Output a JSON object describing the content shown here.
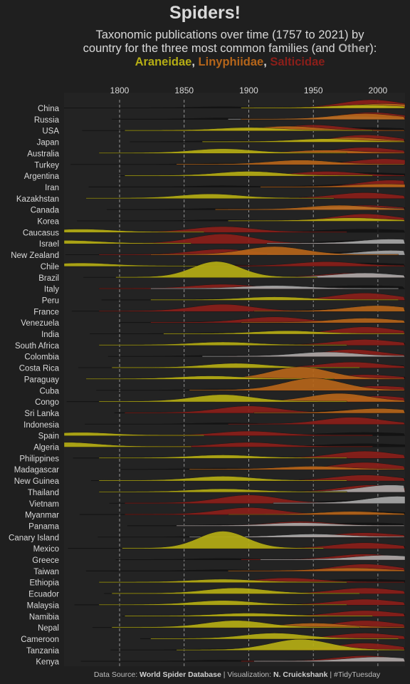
{
  "title": "Spiders!",
  "subtitle_line1": "Taxonomic publications over time (1757 to 2021) by",
  "subtitle_line2_pre": "country for the three most common families (and ",
  "subtitle_other": "Other",
  "subtitle_line2_post": "):",
  "legend": {
    "araneidae": "Araneidae",
    "linyphiidae": "Linyphiidae",
    "salticidae": "Salticidae",
    "sep": ", "
  },
  "colors": {
    "background": "#1f1f1f",
    "araneidae": "#b5ad14",
    "linyphiidae": "#b5651a",
    "salticidae": "#8b1f1a",
    "other": "#a8a8a8",
    "text": "#d9d9d9"
  },
  "caption": {
    "prefix": "Data Source: ",
    "source": "World Spider Database",
    "mid": " | Visualization: ",
    "author": "N. Cruickshank",
    "suffix": " | #TidyTuesday"
  },
  "chart_data": {
    "type": "area",
    "subtype": "ridgeline",
    "x_ticks": [
      1800,
      1850,
      1900,
      1950,
      2000
    ],
    "xlim": [
      1757,
      2021
    ],
    "grid": "dashed vertical lines at x ticks",
    "x_tick_position": "top",
    "legend_placement": "in subtitle",
    "families": [
      "Araneidae",
      "Linyphiidae",
      "Salticidae",
      "Other"
    ],
    "countries": [
      "China",
      "Russia",
      "USA",
      "Japan",
      "Australia",
      "Turkey",
      "Argentina",
      "Iran",
      "Kazakhstan",
      "Canada",
      "Korea",
      "Caucasus",
      "Israel",
      "New Zealand",
      "Chile",
      "Brazil",
      "Italy",
      "Peru",
      "France",
      "Venezuela",
      "India",
      "South Africa",
      "Colombia",
      "Costa Rica",
      "Paraguay",
      "Cuba",
      "Congo",
      "Sri Lanka",
      "Indonesia",
      "Spain",
      "Algeria",
      "Philippines",
      "Madagascar",
      "New Guinea",
      "Thailand",
      "Vietnam",
      "Myanmar",
      "Panama",
      "Canary Island",
      "Mexico",
      "Greece",
      "Taiwan",
      "Ethiopia",
      "Ecuador",
      "Malaysia",
      "Namibia",
      "Nepal",
      "Cameroon",
      "Tanzania",
      "Kenya"
    ],
    "peaks": {
      "China": {
        "Salticidae": [
          1995,
          0.6
        ],
        "Linyphiidae": [
          2005,
          0.3
        ],
        "Araneidae": [
          1990,
          0.2
        ],
        "Other": [
          2000,
          0.2
        ]
      },
      "Russia": {
        "Salticidae": [
          1995,
          0.5
        ],
        "Linyphiidae": [
          1990,
          0.4
        ],
        "Other": [
          1980,
          0.2
        ]
      },
      "USA": {
        "Salticidae": [
          1950,
          0.4
        ],
        "Linyphiidae": [
          1930,
          0.3
        ],
        "Araneidae": [
          1900,
          0.2
        ]
      },
      "Japan": {
        "Salticidae": [
          1990,
          0.5
        ],
        "Linyphiidae": [
          1980,
          0.3
        ],
        "Araneidae": [
          1960,
          0.2
        ]
      },
      "Australia": {
        "Araneidae": [
          1880,
          0.3
        ],
        "Salticidae": [
          1990,
          0.4
        ],
        "Linyphiidae": [
          1960,
          0.2
        ]
      },
      "Turkey": {
        "Linyphiidae": [
          1940,
          0.3
        ],
        "Salticidae": [
          2005,
          0.4
        ]
      },
      "Argentina": {
        "Araneidae": [
          1900,
          0.3
        ],
        "Salticidae": [
          1960,
          0.3
        ]
      },
      "Iran": {
        "Salticidae": [
          2010,
          0.5
        ],
        "Linyphiidae": [
          2005,
          0.2
        ]
      },
      "Kazakhstan": {
        "Araneidae": [
          1870,
          0.3
        ],
        "Salticidae": [
          1990,
          0.4
        ]
      },
      "Canada": {
        "Linyphiidae": [
          1970,
          0.3
        ],
        "Salticidae": [
          1990,
          0.3
        ],
        "Other": [
          1980,
          0.2
        ]
      },
      "Korea": {
        "Salticidae": [
          1990,
          0.5
        ],
        "Araneidae": [
          1980,
          0.2
        ]
      },
      "Caucasus": {
        "Salticidae": [
          1880,
          0.4
        ],
        "Araneidae": [
          1770,
          0.2
        ]
      },
      "Israel": {
        "Araneidae": [
          1760,
          0.2
        ],
        "Salticidae": [
          1880,
          0.7
        ],
        "Other": [
          2010,
          0.3
        ]
      },
      "New Zealand": {
        "Linyphiidae": [
          1920,
          0.6
        ],
        "Salticidae": [
          1880,
          0.4
        ],
        "Other": [
          2010,
          0.3
        ]
      },
      "Chile": {
        "Araneidae": [
          1770,
          0.2
        ],
        "Salticidae": [
          1960,
          0.3
        ]
      },
      "Brazil": {
        "Araneidae": [
          1875,
          1.2
        ],
        "Salticidae": [
          1980,
          0.3
        ],
        "Other": [
          1990,
          0.3
        ]
      },
      "Italy": {
        "Salticidae": [
          1880,
          0.3
        ],
        "Other": [
          1920,
          0.2
        ]
      },
      "Peru": {
        "Salticidae": [
          1990,
          0.5
        ],
        "Araneidae": [
          1920,
          0.2
        ]
      },
      "France": {
        "Salticidae": [
          1880,
          0.5
        ],
        "Linyphiidae": [
          2000,
          0.4
        ]
      },
      "Venezuela": {
        "Salticidae": [
          1920,
          0.4
        ],
        "Linyphiidae": [
          1990,
          0.3
        ]
      },
      "India": {
        "Salticidae": [
          1990,
          0.5
        ],
        "Araneidae": [
          1930,
          0.2
        ]
      },
      "South Africa": {
        "Araneidae": [
          1880,
          0.2
        ],
        "Salticidae": [
          1990,
          0.4
        ]
      },
      "Colombia": {
        "Salticidae": [
          1980,
          0.5
        ],
        "Other": [
          1960,
          0.3
        ]
      },
      "Costa Rica": {
        "Araneidae": [
          1890,
          0.3
        ],
        "Salticidae": [
          1980,
          0.4
        ]
      },
      "Paraguay": {
        "Linyphiidae": [
          1940,
          0.9
        ],
        "Salticidae": [
          1990,
          0.3
        ],
        "Araneidae": [
          1870,
          0.2
        ]
      },
      "Cuba": {
        "Linyphiidae": [
          1950,
          0.9
        ],
        "Salticidae": [
          2000,
          0.3
        ]
      },
      "Congo": {
        "Araneidae": [
          1880,
          0.5
        ],
        "Linyphiidae": [
          1970,
          0.6
        ],
        "Salticidae": [
          2000,
          0.4
        ]
      },
      "Sri Lanka": {
        "Salticidae": [
          1900,
          0.5
        ],
        "Linyphiidae": [
          2000,
          0.3
        ]
      },
      "Indonesia": {
        "Salticidae": [
          1980,
          0.5
        ]
      },
      "Spain": {
        "Araneidae": [
          1770,
          0.2
        ],
        "Salticidae": [
          1900,
          0.3
        ]
      },
      "Algeria": {
        "Araneidae": [
          1760,
          0.3
        ],
        "Salticidae": [
          1900,
          0.3
        ]
      },
      "Philippines": {
        "Salticidae": [
          1990,
          0.5
        ],
        "Araneidae": [
          1880,
          0.2
        ]
      },
      "Madagascar": {
        "Salticidae": [
          1990,
          0.5
        ],
        "Linyphiidae": [
          1950,
          0.2
        ]
      },
      "New Guinea": {
        "Araneidae": [
          1880,
          0.3
        ],
        "Salticidae": [
          1990,
          0.4
        ]
      },
      "Thailand": {
        "Araneidae": [
          1880,
          0.2
        ],
        "Other": [
          2010,
          0.5
        ],
        "Salticidae": [
          1995,
          0.5
        ]
      },
      "Vietnam": {
        "Salticidae": [
          1900,
          0.6
        ],
        "Other": [
          2015,
          0.5
        ]
      },
      "Myanmar": {
        "Salticidae": [
          1900,
          0.5
        ],
        "Linyphiidae": [
          1980,
          0.2
        ]
      },
      "Panama": {
        "Salticidae": [
          1940,
          0.3
        ],
        "Other": [
          1940,
          0.2
        ]
      },
      "Canary Island": {
        "Other": [
          1950,
          0.2
        ],
        "Salticidae": [
          1990,
          0.3
        ]
      },
      "Mexico": {
        "Araneidae": [
          1880,
          1.3
        ],
        "Salticidae": [
          1990,
          0.4
        ]
      },
      "Greece": {
        "Salticidae": [
          1990,
          0.4
        ],
        "Other": [
          2005,
          0.3
        ]
      },
      "Taiwan": {
        "Salticidae": [
          1990,
          0.5
        ],
        "Linyphiidae": [
          1980,
          0.2
        ]
      },
      "Ethiopia": {
        "Salticidae": [
          1930,
          0.3
        ],
        "Araneidae": [
          1880,
          0.2
        ]
      },
      "Ecuador": {
        "Araneidae": [
          1890,
          0.4
        ],
        "Salticidae": [
          1990,
          0.4
        ]
      },
      "Malaysia": {
        "Araneidae": [
          1880,
          0.3
        ],
        "Salticidae": [
          1990,
          0.4
        ]
      },
      "Namibia": {
        "Araneidae": [
          1900,
          0.2
        ],
        "Salticidae": [
          1990,
          0.4
        ]
      },
      "Nepal": {
        "Araneidae": [
          1890,
          0.5
        ],
        "Linyphiidae": [
          1950,
          0.3
        ],
        "Salticidae": [
          1990,
          0.5
        ]
      },
      "Cameroon": {
        "Araneidae": [
          1920,
          0.4
        ],
        "Salticidae": [
          1990,
          0.4
        ]
      },
      "Tanzania": {
        "Araneidae": [
          1940,
          0.8
        ],
        "Salticidae": [
          1990,
          0.5
        ]
      },
      "Kenya": {
        "Salticidae": [
          1990,
          0.4
        ],
        "Other": [
          2000,
          0.3
        ]
      }
    }
  }
}
